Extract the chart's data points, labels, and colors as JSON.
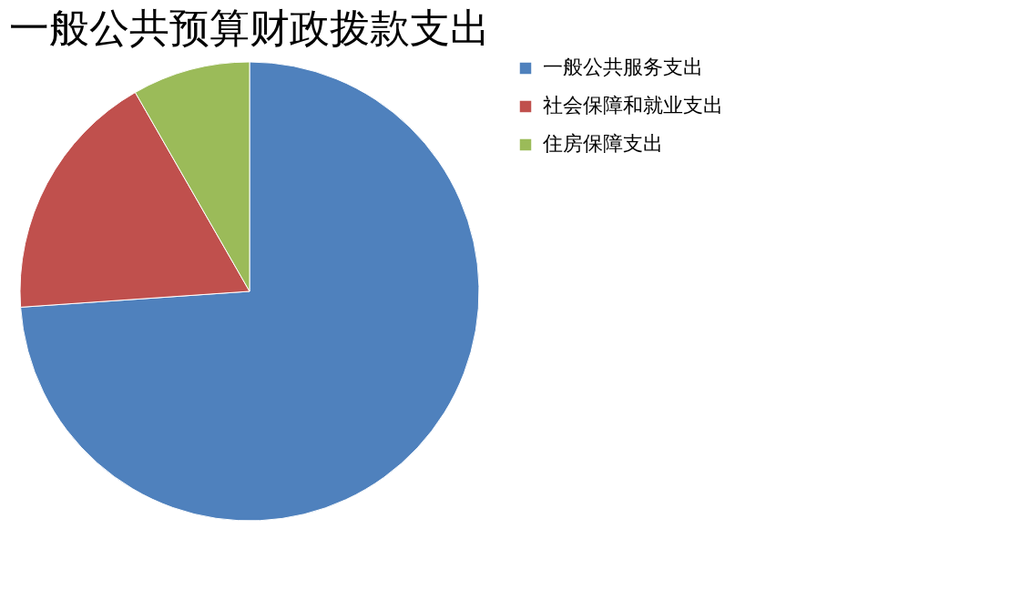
{
  "chart_data": {
    "type": "pie",
    "title": "一般公共预算财政拨款支出",
    "categories": [
      "一般公共服务支出",
      "社会保障和就业支出",
      "住房保障支出"
    ],
    "values": [
      73.9,
      17.8,
      8.3
    ],
    "colors": [
      "#4f81bd",
      "#c0504d",
      "#9bbb59"
    ],
    "legend": "right"
  }
}
